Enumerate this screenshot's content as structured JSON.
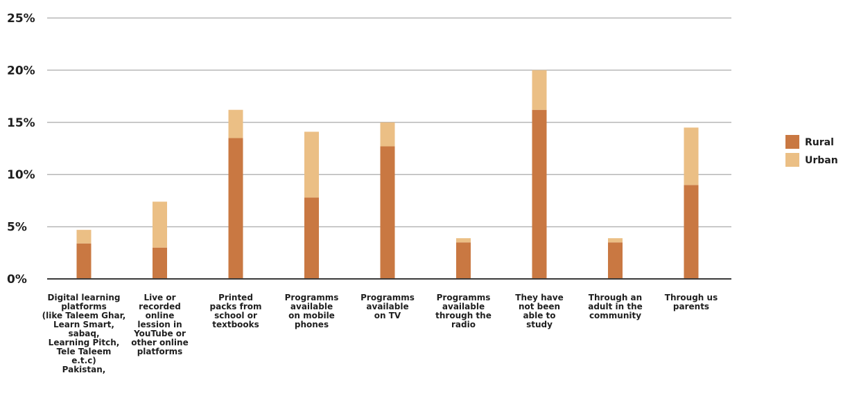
{
  "chart_data": {
    "type": "bar",
    "stacked": true,
    "title": "",
    "xlabel": "",
    "ylabel": "",
    "ylim": [
      0,
      25
    ],
    "yticks": [
      0,
      5,
      10,
      15,
      20,
      25
    ],
    "ytick_labels": [
      "0%",
      "5%",
      "10%",
      "15%",
      "20%",
      "25%"
    ],
    "grid": true,
    "legend_position": "right",
    "categories": [
      "Digital learning platforms (like Taleem Ghar, Learn Smart, sabaq, Learning Pitch, Tele Taleem e.t.c) Pakistan,",
      "Live or recorded online lession in YouTube or other online platforms",
      "Printed packs from school or textbooks",
      "Programms available on mobile phones",
      "Programms available on TV",
      "Programms available through the radio",
      "They have not been able to study",
      "Through an adult in the community",
      "Through us parents"
    ],
    "category_lines": [
      [
        "Digital learning",
        "platforms",
        "(like Taleem Ghar,",
        "Learn Smart,",
        "sabaq,",
        "Learning Pitch,",
        "Tele Taleem",
        "e.t.c)",
        "Pakistan,"
      ],
      [
        "Live or",
        "recorded",
        "online",
        "lession in",
        "YouTube or",
        "other online",
        "platforms"
      ],
      [
        "Printed",
        "packs from",
        "school or",
        "textbooks"
      ],
      [
        "Programms",
        "available",
        "on mobile",
        "phones"
      ],
      [
        "Programms",
        "available",
        "on TV"
      ],
      [
        "Programms",
        "available",
        "through the",
        "radio"
      ],
      [
        "They have",
        "not been",
        "able to",
        "study"
      ],
      [
        "Through an",
        "adult in the",
        "community"
      ],
      [
        "Through us",
        "parents"
      ]
    ],
    "series": [
      {
        "name": "Rural",
        "color": "#c97842",
        "values": [
          3.4,
          3.0,
          13.5,
          7.8,
          12.7,
          3.5,
          16.2,
          3.5,
          9.0
        ]
      },
      {
        "name": "Urban",
        "color": "#ebbf85",
        "values": [
          1.3,
          4.4,
          2.7,
          6.3,
          2.3,
          0.4,
          3.8,
          0.4,
          5.5
        ]
      }
    ]
  }
}
